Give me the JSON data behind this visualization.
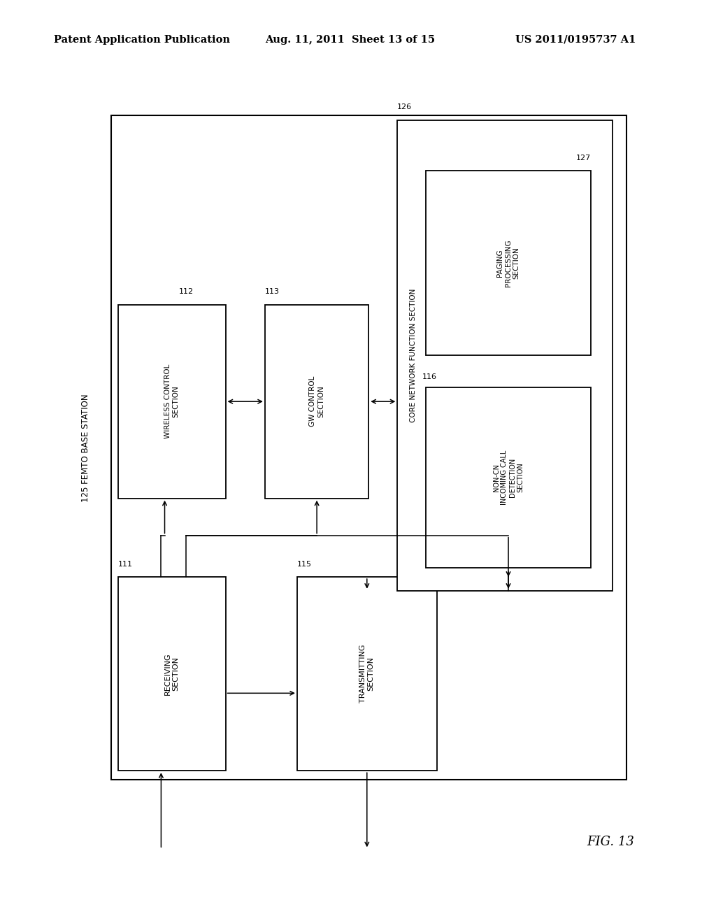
{
  "header_left": "Patent Application Publication",
  "header_mid": "Aug. 11, 2011  Sheet 13 of 15",
  "header_right": "US 2011/0195737 A1",
  "fig_label": "FIG. 13",
  "station_label": "125 FEMTO BASE STATION",
  "bg_color": "#ffffff",
  "outer": [
    0.155,
    0.155,
    0.72,
    0.72
  ],
  "receiving": [
    0.165,
    0.165,
    0.15,
    0.21
  ],
  "transmitting": [
    0.415,
    0.165,
    0.195,
    0.21
  ],
  "wireless": [
    0.165,
    0.46,
    0.15,
    0.21
  ],
  "gw": [
    0.37,
    0.46,
    0.145,
    0.21
  ],
  "core": [
    0.555,
    0.36,
    0.3,
    0.51
  ],
  "non_cn": [
    0.595,
    0.385,
    0.23,
    0.195
  ],
  "paging": [
    0.595,
    0.615,
    0.23,
    0.2
  ],
  "labels": {
    "receiving": "RECEIVING\nSECTION",
    "transmitting": "TRANSMITTING\nSECTION",
    "wireless": "WIRELESS CONTROL\nSECTION",
    "gw": "GW CONTROL\nSECTION",
    "core": "CORE NETWORK FUNCTION SECTION",
    "non_cn": "NON-CN\nINCOMING CALL\nDETECTION\nSECTION",
    "paging": "PAGING\nPROCESSING\nSECTION"
  },
  "nums": {
    "receiving": "111",
    "transmitting": "115",
    "wireless": "112",
    "gw": "113",
    "core": "126",
    "non_cn": "116",
    "paging": "127"
  }
}
